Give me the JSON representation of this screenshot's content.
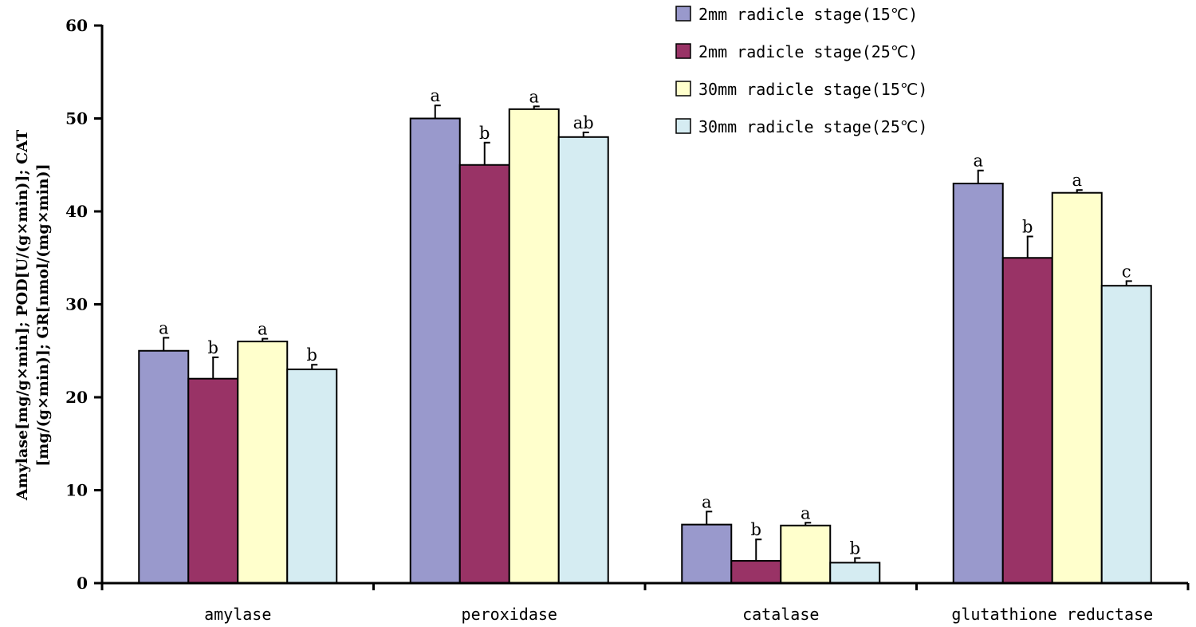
{
  "chart_data": {
    "type": "bar",
    "title": "",
    "xlabel": "",
    "ylabel_lines": [
      "Amylase[mg/g×min]; POD[U/(g×min)]; CAT",
      "[mg/(g×min)]; GR[nmol/(mg×min)]"
    ],
    "ylim": [
      0,
      60
    ],
    "yticks": [
      0,
      10,
      20,
      30,
      40,
      50,
      60
    ],
    "grid": false,
    "legend_position": "top-right",
    "categories": [
      "amylase",
      "peroxidase",
      "catalase",
      "glutathione reductase"
    ],
    "series": [
      {
        "name": "2mm radicle stage(15℃)",
        "color": "#9999cc",
        "values": [
          25,
          50,
          6.3,
          43
        ],
        "errors": [
          1.4,
          1.4,
          1.4,
          1.4
        ],
        "labels": [
          "a",
          "a",
          "a",
          "a"
        ]
      },
      {
        "name": "2mm radicle stage(25℃)",
        "color": "#993366",
        "values": [
          22,
          45,
          2.4,
          35
        ],
        "errors": [
          2.3,
          2.4,
          2.3,
          2.3
        ],
        "labels": [
          "b",
          "b",
          "b",
          "b"
        ]
      },
      {
        "name": "30mm radicle stage(15℃)",
        "color": "#ffffcc",
        "values": [
          26,
          51,
          6.2,
          42
        ],
        "errors": [
          0.3,
          0.3,
          0.3,
          0.3
        ],
        "labels": [
          "a",
          "a",
          "a",
          "a"
        ]
      },
      {
        "name": "30mm radicle stage(25℃)",
        "color": "#d5ecf2",
        "values": [
          23,
          48,
          2.2,
          32
        ],
        "errors": [
          0.5,
          0.5,
          0.5,
          0.5
        ],
        "labels": [
          "b",
          "ab",
          "b",
          "c"
        ]
      }
    ]
  }
}
